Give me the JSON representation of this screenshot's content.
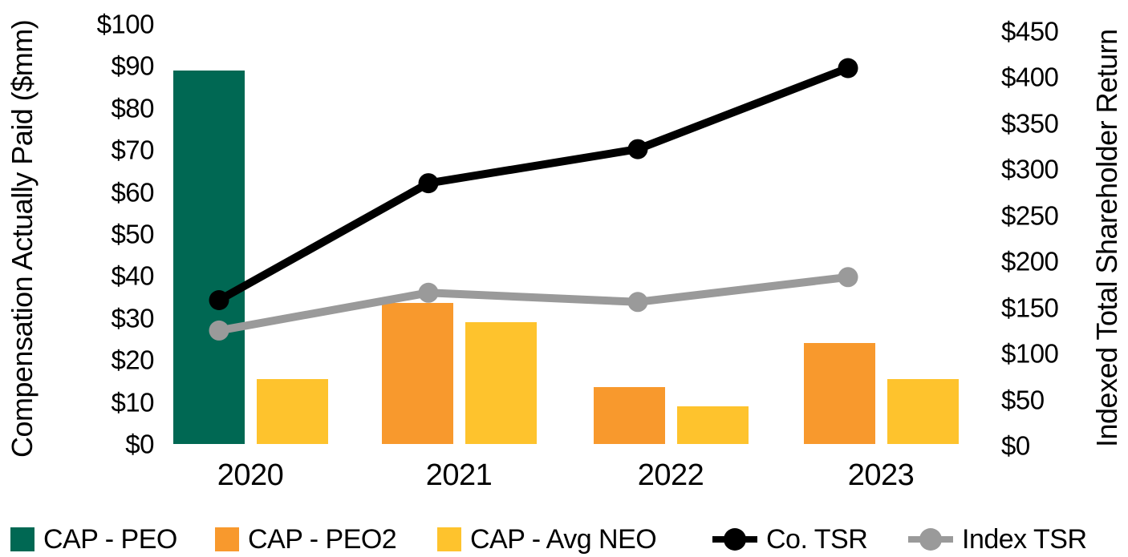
{
  "chart_data": {
    "type": "combo-bar-line",
    "categories": [
      "2020",
      "2021",
      "2022",
      "2023"
    ],
    "bar_series": [
      {
        "name": "CAP - PEO",
        "color": "#006853",
        "values": [
          89,
          null,
          null,
          null
        ]
      },
      {
        "name": "CAP - PEO2",
        "color": "#F8992D",
        "values": [
          null,
          33.5,
          13.5,
          24
        ]
      },
      {
        "name": "CAP - Avg NEO",
        "color": "#FEC32D",
        "values": [
          15.5,
          29,
          9,
          15.5
        ]
      }
    ],
    "line_series": [
      {
        "name": "Co. TSR",
        "color": "#000000",
        "axis": "right",
        "values": [
          158,
          285,
          322,
          410
        ]
      },
      {
        "name": "Index TSR",
        "color": "#9A9A9A",
        "axis": "right",
        "values": [
          125,
          166,
          156,
          183
        ]
      }
    ],
    "left_axis": {
      "title": "Compensation Actually Paid ($mm)",
      "min": 0,
      "max": 100,
      "ticks": [
        "$0",
        "$10",
        "$20",
        "$30",
        "$40",
        "$50",
        "$60",
        "$70",
        "$80",
        "$90",
        "$100"
      ]
    },
    "right_axis": {
      "title": "Indexed Total Shareholder Return",
      "min": 0,
      "max": 450,
      "ticks": [
        "$0",
        "$50",
        "$100",
        "$150",
        "$200",
        "$250",
        "$300",
        "$350",
        "$400",
        "$450"
      ]
    },
    "legend_position": "bottom",
    "grid": false
  }
}
